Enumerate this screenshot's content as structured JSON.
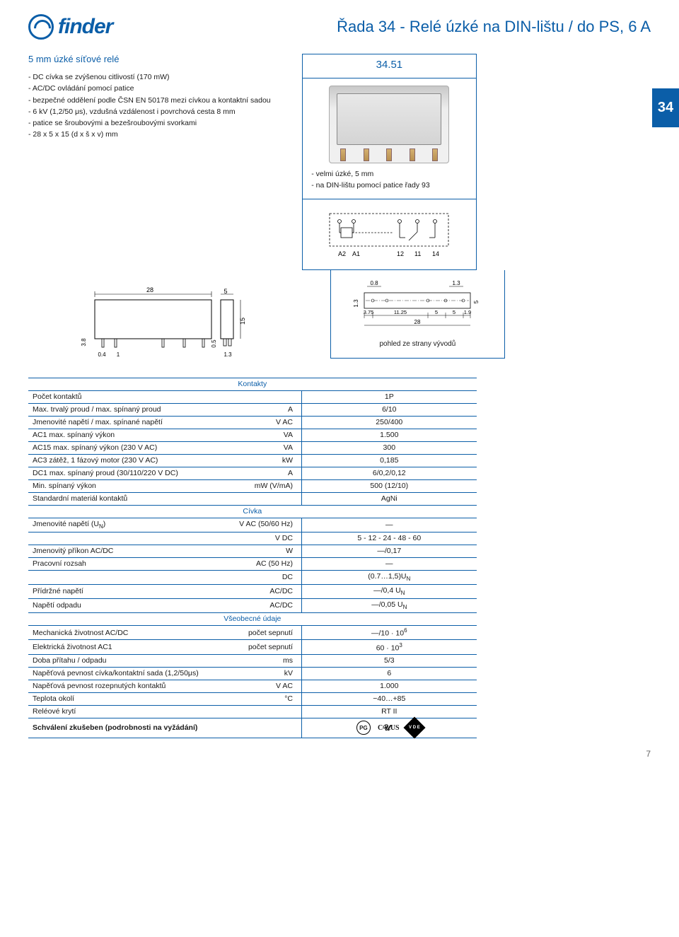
{
  "logo_text": "finder",
  "page_title": "Řada 34 - Relé úzké na DIN-lištu / do PS, 6 A",
  "side_tab": "34",
  "left": {
    "heading": "5 mm úzké síťové relé",
    "bullets": [
      "- DC cívka se zvýšenou citlivostí (170 mW)",
      "- AC/DC ovládání pomocí patice",
      "- bezpečné oddělení podle ČSN EN 50178 mezi cívkou a kontaktní sadou",
      "- 6 kV (1,2/50 μs), vzdušná vzdálenost i povrchová cesta 8 mm",
      "- patice se šroubovými a bezešroubovými svorkami",
      "- 28 x 5 x 15 (d x š x v) mm"
    ]
  },
  "right": {
    "model": "34.51",
    "desc": [
      "- velmi úzké, 5 mm",
      "- na DIN-lištu pomocí patice řady 93"
    ]
  },
  "schematic_labels": [
    "A2",
    "A1",
    "12",
    "11",
    "14"
  ],
  "dim_side": {
    "w": "28",
    "h_outer": "5",
    "h_inner": "15",
    "base_h": "3.8",
    "gap1": "0.4",
    "gap2": "1",
    "pin": "0.5",
    "gap3": "1.3"
  },
  "dim_foot": {
    "top1": "0.8",
    "top2": "1.3",
    "h": "5",
    "lh": "1.3",
    "seg1": "3.75",
    "seg2": "11.25",
    "seg3": "5",
    "seg4": "5",
    "seg5": "1.9",
    "total": "28"
  },
  "pohled_label": "pohled ze strany vývodů",
  "specs": {
    "groups": [
      {
        "header": "Kontakty",
        "rows": [
          {
            "label": "Počet kontaktů",
            "unit": "",
            "val": "1P"
          },
          {
            "label": "Max. trvalý proud / max. spínaný proud",
            "unit": "A",
            "val": "6/10"
          },
          {
            "label": "Jmenovité napětí / max. spínané napětí",
            "unit": "V AC",
            "val": "250/400"
          },
          {
            "label": "AC1 max. spínaný výkon",
            "unit": "VA",
            "val": "1.500"
          },
          {
            "label": "AC15 max. spínaný výkon (230 V AC)",
            "unit": "VA",
            "val": "300"
          },
          {
            "label": "AC3 zátěž, 1 fázový motor (230 V AC)",
            "unit": "kW",
            "val": "0,185"
          },
          {
            "label": "DC1 max. spínaný proud (30/110/220 V DC)",
            "unit": "A",
            "val": "6/0,2/0,12"
          },
          {
            "label": "Min. spínaný výkon",
            "unit": "mW (V/mA)",
            "val": "500 (12/10)"
          },
          {
            "label": "Standardní materiál kontaktů",
            "unit": "",
            "val": "AgNi"
          }
        ]
      },
      {
        "header": "Cívka",
        "rows": [
          {
            "label": "Jmenovité napětí (U_N)",
            "unit": "V AC (50/60 Hz)",
            "val": "—"
          },
          {
            "label": "",
            "unit": "V DC",
            "val": "5 - 12 - 24 - 48 - 60"
          },
          {
            "label": "Jmenovitý příkon AC/DC",
            "unit": "W",
            "val": "—/0,17"
          },
          {
            "label": "Pracovní rozsah",
            "unit": "AC (50 Hz)",
            "val": "—"
          },
          {
            "label": "",
            "unit": "DC",
            "val": "(0.7…1,5)U_N"
          },
          {
            "label": "Přídržné napětí",
            "unit": "AC/DC",
            "val": "—/0,4 U_N"
          },
          {
            "label": "Napětí odpadu",
            "unit": "AC/DC",
            "val": "—/0,05 U_N"
          }
        ]
      },
      {
        "header": "Všeobecné údaje",
        "rows": [
          {
            "label": "Mechanická životnost AC/DC",
            "unit": "počet sepnutí",
            "val": "—/10 · 10^6"
          },
          {
            "label": "Elektrická životnost AC1",
            "unit": "počet sepnutí",
            "val": "60 · 10^3"
          },
          {
            "label": "Doba přítahu / odpadu",
            "unit": "ms",
            "val": "5/3"
          },
          {
            "label": "Napěťová pevnost cívka/kontaktní sada (1,2/50μs)",
            "unit": "kV",
            "val": "6"
          },
          {
            "label": "Napěťová pevnost rozepnutých kontaktů",
            "unit": "V AC",
            "val": "1.000"
          },
          {
            "label": "Teplota okolí",
            "unit": "°C",
            "val": "−40…+85"
          },
          {
            "label": "Reléové krytí",
            "unit": "",
            "val": "RT II"
          },
          {
            "label": "Schválení zkušeben (podrobnosti na vyžádání)",
            "unit": "",
            "val": "CERT_ICONS",
            "bold": true
          }
        ]
      }
    ]
  },
  "page_number": "7",
  "colors": {
    "brand": "#0b5ea8",
    "text": "#1a1a1a"
  }
}
